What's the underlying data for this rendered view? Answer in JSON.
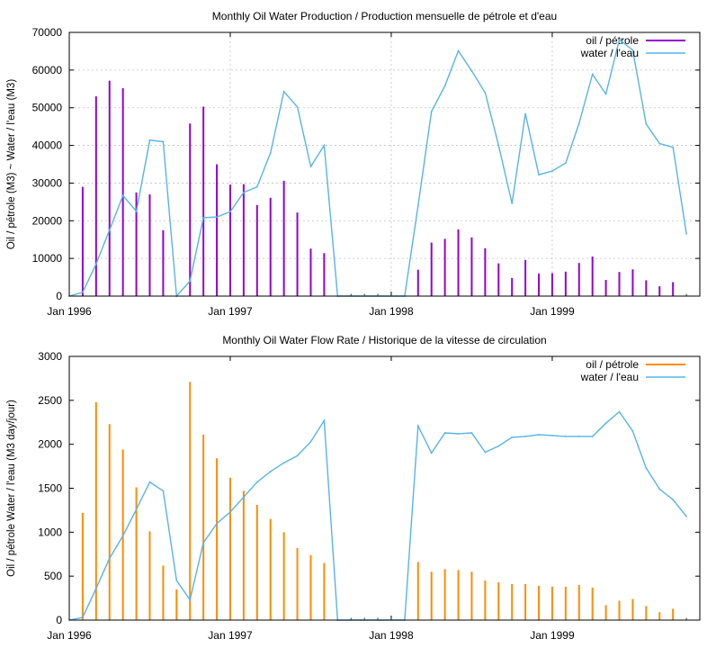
{
  "chart_data": [
    {
      "type": "bar",
      "title": "Monthly Oil  Water Production / Production mensuelle de pétrole et d'eau",
      "xlabel": "",
      "ylabel": "Oil / pétrole (M3) ~  Water / l'eau (M3)",
      "ylim": [
        0,
        70000
      ],
      "yticks": [
        0,
        10000,
        20000,
        30000,
        40000,
        50000,
        60000,
        70000
      ],
      "ytick_labels": [
        "0",
        "10000",
        "20000",
        "30000",
        "40000",
        "50000",
        "60000",
        "70000"
      ],
      "xlim": [
        "1996-01",
        "1999-12"
      ],
      "xticks": [
        "1996-01",
        "1997-01",
        "1998-01",
        "1999-01"
      ],
      "xtick_labels": [
        "Jan 1996",
        "Jan 1997",
        "Jan 1998",
        "Jan 1999"
      ],
      "grid": true,
      "legend_position": "top-right",
      "series": [
        {
          "name": "oil / pétrole",
          "style": "impulses",
          "color": "#9400d3",
          "points": [
            [
              "1996-02",
              29000
            ],
            [
              "1996-03",
              53000
            ],
            [
              "1996-04",
              57200
            ],
            [
              "1996-05",
              55200
            ],
            [
              "1996-06",
              27500
            ],
            [
              "1996-07",
              27000
            ],
            [
              "1996-08",
              17500
            ],
            [
              "1996-10",
              45800
            ],
            [
              "1996-11",
              50300
            ],
            [
              "1996-12",
              35000
            ],
            [
              "1997-01",
              29600
            ],
            [
              "1997-02",
              29700
            ],
            [
              "1997-03",
              24200
            ],
            [
              "1997-04",
              26100
            ],
            [
              "1997-05",
              30600
            ],
            [
              "1997-06",
              22200
            ],
            [
              "1997-07",
              12600
            ],
            [
              "1997-08",
              11400
            ],
            [
              "1998-03",
              7000
            ],
            [
              "1998-04",
              14200
            ],
            [
              "1998-05",
              15200
            ],
            [
              "1998-06",
              17700
            ],
            [
              "1998-07",
              15600
            ],
            [
              "1998-08",
              12700
            ],
            [
              "1998-09",
              8700
            ],
            [
              "1998-10",
              4800
            ],
            [
              "1998-11",
              9600
            ],
            [
              "1998-12",
              6000
            ],
            [
              "1999-01",
              6100
            ],
            [
              "1999-02",
              6500
            ],
            [
              "1999-03",
              8800
            ],
            [
              "1999-04",
              10500
            ],
            [
              "1999-05",
              4300
            ],
            [
              "1999-06",
              6400
            ],
            [
              "1999-07",
              7100
            ],
            [
              "1999-08",
              4200
            ],
            [
              "1999-09",
              2600
            ],
            [
              "1999-10",
              3700
            ]
          ]
        },
        {
          "name": "water / l'eau",
          "style": "lines",
          "color": "#56b4e9",
          "points": [
            [
              "1996-01",
              0
            ],
            [
              "1996-02",
              1000
            ],
            [
              "1996-03",
              8500
            ],
            [
              "1996-04",
              17500
            ],
            [
              "1996-05",
              26700
            ],
            [
              "1996-06",
              22500
            ],
            [
              "1996-07",
              41400
            ],
            [
              "1996-08",
              41000
            ],
            [
              "1996-09",
              0
            ],
            [
              "1996-10",
              4000
            ],
            [
              "1996-11",
              20800
            ],
            [
              "1996-12",
              21000
            ],
            [
              "1997-01",
              22400
            ],
            [
              "1997-02",
              27500
            ],
            [
              "1997-03",
              29000
            ],
            [
              "1997-04",
              38000
            ],
            [
              "1997-05",
              54300
            ],
            [
              "1997-06",
              50200
            ],
            [
              "1997-07",
              34400
            ],
            [
              "1997-08",
              40000
            ],
            [
              "1997-09",
              0
            ],
            [
              "1998-02",
              0
            ],
            [
              "1998-03",
              24000
            ],
            [
              "1998-04",
              49000
            ],
            [
              "1998-05",
              55800
            ],
            [
              "1998-06",
              65100
            ],
            [
              "1998-07",
              59800
            ],
            [
              "1998-08",
              54000
            ],
            [
              "1998-09",
              40000
            ],
            [
              "1998-10",
              24600
            ],
            [
              "1998-11",
              48400
            ],
            [
              "1998-12",
              32200
            ],
            [
              "1999-01",
              33200
            ],
            [
              "1999-02",
              35300
            ],
            [
              "1999-03",
              45900
            ],
            [
              "1999-04",
              58900
            ],
            [
              "1999-05",
              53600
            ],
            [
              "1999-06",
              68100
            ],
            [
              "1999-07",
              65300
            ],
            [
              "1999-08",
              45700
            ],
            [
              "1999-09",
              40500
            ],
            [
              "1999-10",
              39500
            ],
            [
              "1999-11",
              16500
            ]
          ]
        }
      ]
    },
    {
      "type": "bar",
      "title": "Monthly Oil  Water Flow Rate / Historique de la vitesse de circulation",
      "xlabel": "",
      "ylabel": "Oil / pétrole  Water / l'eau (M3 day/jour)",
      "ylim": [
        0,
        3000
      ],
      "yticks": [
        0,
        500,
        1000,
        1500,
        2000,
        2500,
        3000
      ],
      "ytick_labels": [
        "0",
        "500",
        "1000",
        "1500",
        "2000",
        "2500",
        "3000"
      ],
      "xlim": [
        "1996-01",
        "1999-12"
      ],
      "xticks": [
        "1996-01",
        "1997-01",
        "1998-01",
        "1999-01"
      ],
      "xtick_labels": [
        "Jan 1996",
        "Jan 1997",
        "Jan 1998",
        "Jan 1999"
      ],
      "grid": false,
      "legend_position": "top-right",
      "series": [
        {
          "name": "oil / pétrole",
          "style": "impulses",
          "color": "#ff8c00",
          "points": [
            [
              "1996-02",
              1220
            ],
            [
              "1996-03",
              2480
            ],
            [
              "1996-04",
              2230
            ],
            [
              "1996-05",
              1940
            ],
            [
              "1996-06",
              1510
            ],
            [
              "1996-07",
              1010
            ],
            [
              "1996-08",
              620
            ],
            [
              "1996-09",
              350
            ],
            [
              "1996-10",
              2710
            ],
            [
              "1996-11",
              2110
            ],
            [
              "1996-12",
              1840
            ],
            [
              "1997-01",
              1620
            ],
            [
              "1997-02",
              1470
            ],
            [
              "1997-03",
              1310
            ],
            [
              "1997-04",
              1150
            ],
            [
              "1997-05",
              1000
            ],
            [
              "1997-06",
              820
            ],
            [
              "1997-07",
              740
            ],
            [
              "1997-08",
              650
            ],
            [
              "1998-03",
              660
            ],
            [
              "1998-04",
              550
            ],
            [
              "1998-05",
              580
            ],
            [
              "1998-06",
              570
            ],
            [
              "1998-07",
              550
            ],
            [
              "1998-08",
              450
            ],
            [
              "1998-09",
              430
            ],
            [
              "1998-10",
              410
            ],
            [
              "1998-11",
              410
            ],
            [
              "1998-12",
              390
            ],
            [
              "1999-01",
              380
            ],
            [
              "1999-02",
              380
            ],
            [
              "1999-03",
              400
            ],
            [
              "1999-04",
              370
            ],
            [
              "1999-05",
              170
            ],
            [
              "1999-06",
              220
            ],
            [
              "1999-07",
              240
            ],
            [
              "1999-08",
              160
            ],
            [
              "1999-09",
              90
            ],
            [
              "1999-10",
              130
            ]
          ]
        },
        {
          "name": "water / l'eau",
          "style": "lines",
          "color": "#56b4e9",
          "points": [
            [
              "1996-01",
              0
            ],
            [
              "1996-02",
              30
            ],
            [
              "1996-03",
              360
            ],
            [
              "1996-04",
              700
            ],
            [
              "1996-05",
              960
            ],
            [
              "1996-06",
              1260
            ],
            [
              "1996-07",
              1570
            ],
            [
              "1996-08",
              1470
            ],
            [
              "1996-09",
              450
            ],
            [
              "1996-10",
              230
            ],
            [
              "1996-11",
              880
            ],
            [
              "1996-12",
              1100
            ],
            [
              "1997-01",
              1230
            ],
            [
              "1997-02",
              1400
            ],
            [
              "1997-03",
              1570
            ],
            [
              "1997-04",
              1690
            ],
            [
              "1997-05",
              1790
            ],
            [
              "1997-06",
              1870
            ],
            [
              "1997-07",
              2030
            ],
            [
              "1997-08",
              2270
            ],
            [
              "1997-09",
              0
            ],
            [
              "1998-02",
              0
            ],
            [
              "1998-03",
              2210
            ],
            [
              "1998-04",
              1900
            ],
            [
              "1998-05",
              2130
            ],
            [
              "1998-06",
              2120
            ],
            [
              "1998-07",
              2130
            ],
            [
              "1998-08",
              1910
            ],
            [
              "1998-09",
              1980
            ],
            [
              "1998-10",
              2080
            ],
            [
              "1998-11",
              2090
            ],
            [
              "1998-12",
              2110
            ],
            [
              "1999-01",
              2100
            ],
            [
              "1999-02",
              2090
            ],
            [
              "1999-03",
              2090
            ],
            [
              "1999-04",
              2090
            ],
            [
              "1999-05",
              2240
            ],
            [
              "1999-06",
              2370
            ],
            [
              "1999-07",
              2150
            ],
            [
              "1999-08",
              1730
            ],
            [
              "1999-09",
              1490
            ],
            [
              "1999-10",
              1370
            ],
            [
              "1999-11",
              1180
            ]
          ]
        }
      ]
    }
  ]
}
